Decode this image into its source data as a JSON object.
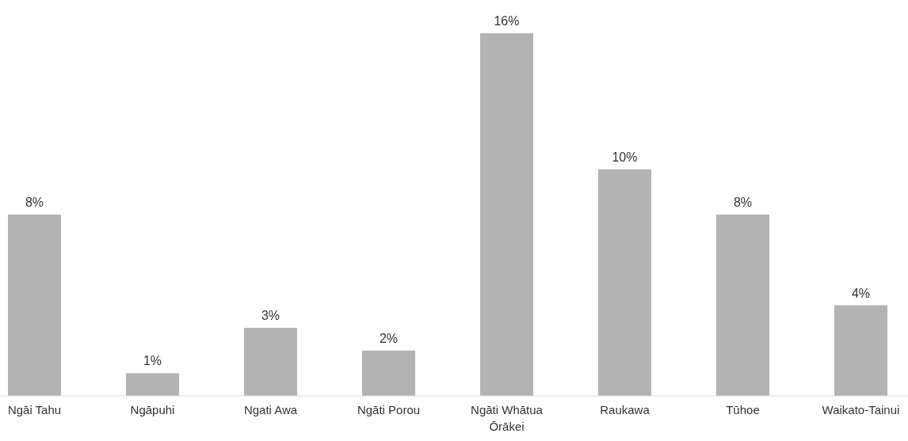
{
  "chart_data": {
    "type": "bar",
    "categories": [
      "Ngāi Tahu",
      "Ngāpuhi",
      "Ngati Awa",
      "Ngāti Porou",
      "Ngāti Whātua Ōrākei",
      "Raukawa",
      "Tūhoe",
      "Waikato-Tainui"
    ],
    "values": [
      8,
      1,
      3,
      2,
      16,
      10,
      8,
      4
    ],
    "value_labels": [
      "8%",
      "1%",
      "3%",
      "2%",
      "16%",
      "10%",
      "8%",
      "4%"
    ],
    "color": "#b3b3b3"
  }
}
